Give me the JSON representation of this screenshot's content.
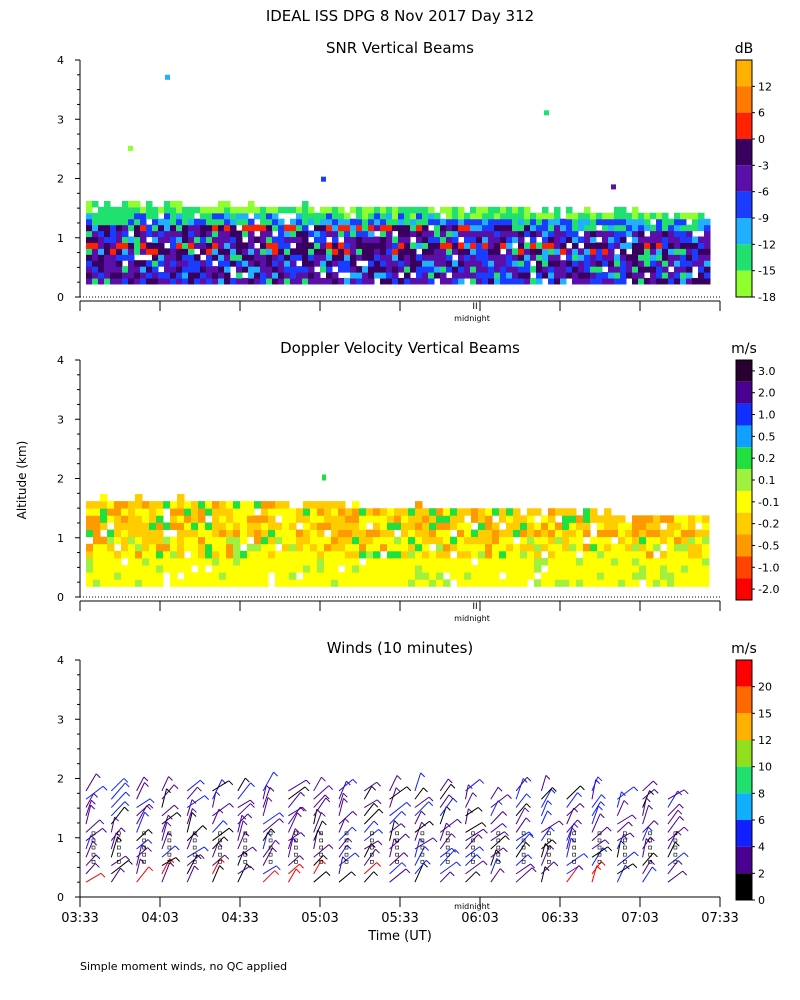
{
  "page_title": "IDEAL ISS DPG    8 Nov 2017 Day 312",
  "y_axis_label": "Altitude (km)",
  "x_axis_label": "Time (UT)",
  "footnote": "Simple moment winds, no QC applied",
  "midnight_label": "midnight",
  "midnight_mark": "II",
  "chart_data": [
    {
      "type": "heatmap",
      "title": "SNR Vertical Beams",
      "unit": "dB",
      "ylim": [
        0,
        4
      ],
      "yticks": [
        "0",
        "1",
        "2",
        "3",
        "4"
      ],
      "xlim_hours": [
        3.55,
        7.55
      ],
      "colorbar": {
        "labels": [
          "12",
          "6",
          "0",
          "-3",
          "-6",
          "-9",
          "-12",
          "-15",
          "-18"
        ],
        "colors": [
          "#ffb000",
          "#ff7a00",
          "#ff2200",
          "#3a0060",
          "#5a10a8",
          "#1a3cff",
          "#20b0ff",
          "#20e070",
          "#90ff30"
        ]
      }
    },
    {
      "type": "heatmap",
      "title": "Doppler Velocity Vertical Beams",
      "unit": "m/s",
      "ylim": [
        0,
        4
      ],
      "yticks": [
        "0",
        "1",
        "2",
        "3",
        "4"
      ],
      "xlim_hours": [
        3.55,
        7.55
      ],
      "colorbar": {
        "labels": [
          "3.0",
          "2.0",
          "1.0",
          "0.5",
          "0.2",
          "0.1",
          "-0.1",
          "-0.2",
          "-0.5",
          "-1.0",
          "-2.0"
        ],
        "colors": [
          "#2a0030",
          "#4a0090",
          "#1030ff",
          "#10a0ff",
          "#20e040",
          "#a0f040",
          "#ffff00",
          "#ffcc00",
          "#ff9900",
          "#ff4400",
          "#ff0000"
        ]
      }
    },
    {
      "type": "wind_barbs",
      "title": "Winds (10 minutes)",
      "unit": "m/s",
      "ylim": [
        0,
        4
      ],
      "yticks": [
        "0",
        "1",
        "2",
        "3",
        "4"
      ],
      "x_tick_labels": [
        "03:33",
        "04:03",
        "04:33",
        "05:03",
        "05:33",
        "06:03",
        "06:33",
        "07:03",
        "07:33"
      ],
      "colorbar": {
        "labels": [
          "20",
          "15",
          "12",
          "10",
          "8",
          "6",
          "4",
          "2",
          "0"
        ],
        "colors": [
          "#ff0000",
          "#ff6a00",
          "#ffb000",
          "#90e020",
          "#20e070",
          "#10b0ff",
          "#1020ff",
          "#4a0090",
          "#000000"
        ]
      }
    }
  ]
}
